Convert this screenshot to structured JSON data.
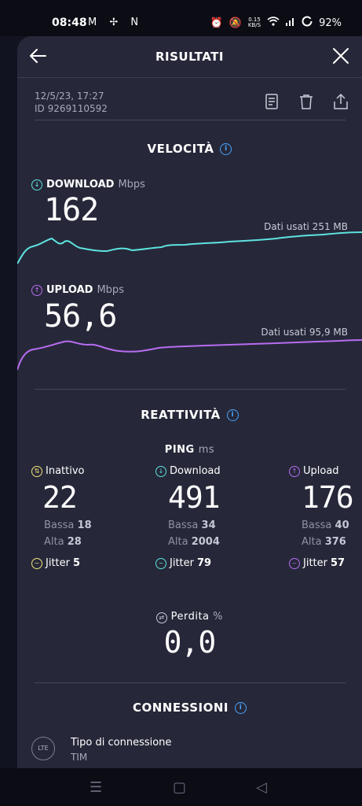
{
  "statusbar": {
    "time": "08:48",
    "left_icons": "M ✢ N",
    "speed_value": "0.15",
    "speed_unit": "KB/S",
    "battery": "92%"
  },
  "header": {
    "title": "RISULTATI"
  },
  "meta": {
    "date": "12/5/23, 17:27",
    "id": "ID 9269110592"
  },
  "velocita": {
    "title": "VELOCITÀ",
    "download": {
      "label": "DOWNLOAD",
      "unit": "Mbps",
      "value": "162",
      "data_used": "Dati usati 251 MB",
      "color": "#5ee3e0"
    },
    "upload": {
      "label": "UPLOAD",
      "unit": "Mbps",
      "value": "56,6",
      "data_used": "Dati usati 95,9 MB",
      "color": "#b86cf0"
    }
  },
  "reattivita": {
    "title": "REATTIVITÀ",
    "ping_label": "PING",
    "ping_unit": "ms",
    "columns": [
      {
        "label": "Inattivo",
        "value": "22",
        "low_label": "Bassa",
        "low": "18",
        "high_label": "Alta",
        "high": "28",
        "jitter_label": "Jitter",
        "jitter": "5",
        "color": "#f2e27a"
      },
      {
        "label": "Download",
        "value": "491",
        "low_label": "Bassa",
        "low": "34",
        "high_label": "Alta",
        "high": "2004",
        "jitter_label": "Jitter",
        "jitter": "79",
        "color": "#5ee3e0"
      },
      {
        "label": "Upload",
        "value": "176",
        "low_label": "Bassa",
        "low": "40",
        "high_label": "Alta",
        "high": "376",
        "jitter_label": "Jitter",
        "jitter": "57",
        "color": "#b86cf0"
      }
    ],
    "loss_label": "Perdita",
    "loss_unit": "%",
    "loss_value": "0,0"
  },
  "connessioni": {
    "title": "CONNESSIONI",
    "icon_text": "LTE",
    "type_label": "Tipo di connessione",
    "type_value": "TIM"
  }
}
